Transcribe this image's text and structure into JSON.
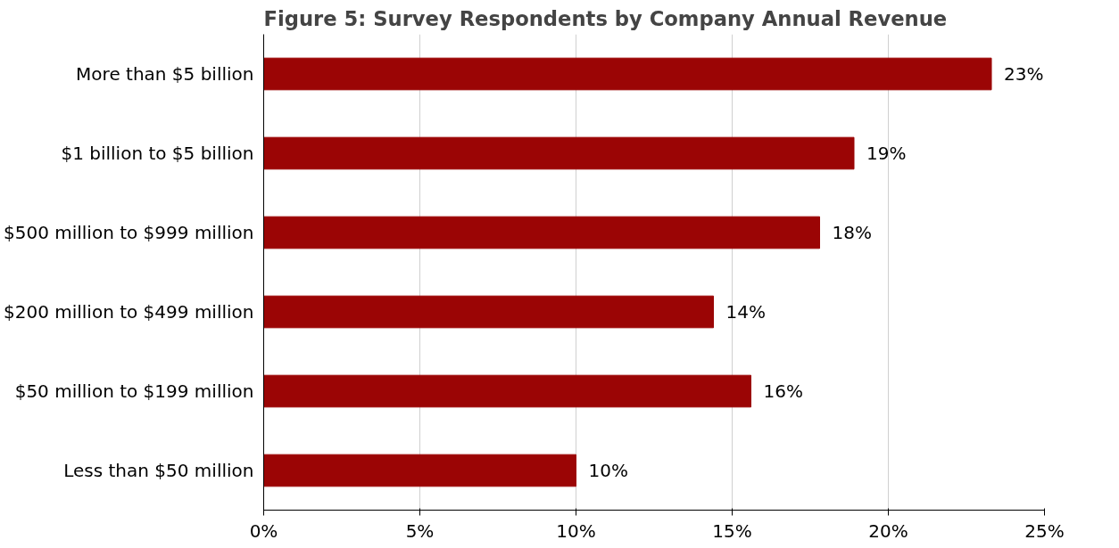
{
  "chart_data": {
    "type": "bar",
    "orientation": "horizontal",
    "title": "Figure 5: Survey Respondents by Company Annual Revenue",
    "categories": [
      "More than $5 billion",
      "$1 billion to $5 billion",
      "$500 million to $999 million",
      "$200 million to $499 million",
      "$50 million to $199 million",
      "Less than $50 million"
    ],
    "values": [
      23.3,
      18.9,
      17.8,
      14.4,
      15.6,
      10.0
    ],
    "value_labels": [
      "23%",
      "19%",
      "18%",
      "14%",
      "16%",
      "10%"
    ],
    "color": "#9b0505",
    "xlim": [
      0,
      25
    ],
    "xticks": [
      {
        "value": 0,
        "label": "0%"
      },
      {
        "value": 5,
        "label": "5%"
      },
      {
        "value": 10,
        "label": "10%"
      },
      {
        "value": 15,
        "label": "15%"
      },
      {
        "value": 20,
        "label": "20%"
      },
      {
        "value": 25,
        "label": "25%"
      }
    ],
    "grid": "x"
  }
}
